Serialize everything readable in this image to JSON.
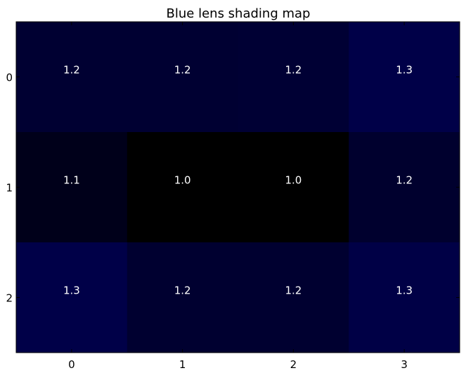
{
  "chart_data": {
    "type": "heatmap",
    "title": "Blue lens shading map",
    "xlabel": "",
    "ylabel": "",
    "x_ticks": [
      "0",
      "1",
      "2",
      "3"
    ],
    "y_ticks": [
      "0",
      "1",
      "2"
    ],
    "values": [
      [
        "1.2",
        "1.2",
        "1.2",
        "1.3"
      ],
      [
        "1.1",
        "1.0",
        "1.0",
        "1.2"
      ],
      [
        "1.3",
        "1.2",
        "1.2",
        "1.3"
      ]
    ],
    "cell_colors": [
      [
        "#000032",
        "#000032",
        "#000034",
        "#000048"
      ],
      [
        "#00001a",
        "#000000",
        "#000000",
        "#00002e"
      ],
      [
        "#000048",
        "#000030",
        "#000030",
        "#000046"
      ]
    ],
    "grid": false,
    "colormap": "black-to-blue"
  }
}
